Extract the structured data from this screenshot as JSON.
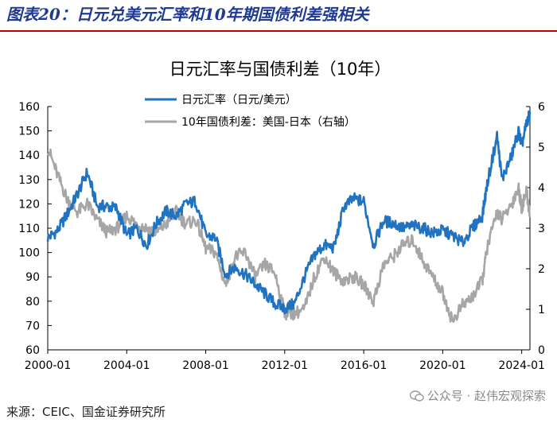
{
  "header": {
    "heading": "图表20：日元兑美元汇率和10年期国债利差强相关"
  },
  "footer": {
    "source": "来源：CEIC、国金证券研究所",
    "watermark": "公众号 · 赵伟宏观探索"
  },
  "colors": {
    "series_blue": "#1f73c1",
    "series_gray": "#a6a6a6",
    "heading": "#1f3a93",
    "rule": "#c00000"
  },
  "chart_data": {
    "type": "line",
    "title": "日元汇率与国债利差（10年）",
    "x_ticks": [
      "2000-01",
      "2004-01",
      "2008-01",
      "2012-01",
      "2016-01",
      "2020-01",
      "2024-01"
    ],
    "xlim": [
      "2000-01",
      "2024-06"
    ],
    "y_left": {
      "lim": [
        60,
        160
      ],
      "ticks": [
        "60",
        "70",
        "80",
        "90",
        "100",
        "110",
        "120",
        "130",
        "140",
        "150",
        "160"
      ]
    },
    "y_right": {
      "lim": [
        0,
        6
      ],
      "ticks": [
        "0",
        "1",
        "2",
        "3",
        "4",
        "5",
        "6"
      ]
    },
    "legend_position": "top-center",
    "series": [
      {
        "name": "日元汇率（日元/美元）",
        "axis": "left",
        "x": [
          "2000-01",
          "2000-07",
          "2001-01",
          "2001-07",
          "2002-01",
          "2002-07",
          "2003-01",
          "2003-07",
          "2004-01",
          "2004-07",
          "2005-01",
          "2005-07",
          "2006-01",
          "2006-07",
          "2007-01",
          "2007-07",
          "2008-01",
          "2008-07",
          "2009-01",
          "2009-07",
          "2010-01",
          "2010-07",
          "2011-01",
          "2011-07",
          "2012-01",
          "2012-07",
          "2013-01",
          "2013-07",
          "2014-01",
          "2014-07",
          "2015-01",
          "2015-07",
          "2016-01",
          "2016-07",
          "2017-01",
          "2017-07",
          "2018-01",
          "2018-07",
          "2019-01",
          "2019-07",
          "2020-01",
          "2020-07",
          "2021-01",
          "2021-07",
          "2022-01",
          "2022-04",
          "2022-10",
          "2023-01",
          "2023-07",
          "2023-11",
          "2024-01",
          "2024-04",
          "2024-06"
        ],
        "values": [
          106,
          109,
          116,
          124,
          133,
          119,
          119,
          118,
          107,
          110,
          103,
          112,
          117,
          115,
          120,
          121,
          107,
          106,
          91,
          94,
          91,
          87,
          83,
          79,
          77,
          79,
          90,
          99,
          103,
          102,
          119,
          122,
          121,
          103,
          113,
          112,
          110,
          111,
          110,
          108,
          109,
          107,
          104,
          110,
          115,
          128,
          148,
          130,
          140,
          150,
          144,
          153,
          157
        ]
      },
      {
        "name": "10年国债利差：美国-日本（右轴）",
        "axis": "right",
        "x": [
          "2000-01",
          "2000-07",
          "2001-01",
          "2001-07",
          "2002-01",
          "2002-07",
          "2003-01",
          "2003-07",
          "2004-01",
          "2004-07",
          "2005-01",
          "2005-07",
          "2006-01",
          "2006-07",
          "2007-01",
          "2007-07",
          "2008-01",
          "2008-07",
          "2009-01",
          "2009-07",
          "2010-01",
          "2010-07",
          "2011-01",
          "2011-07",
          "2012-01",
          "2012-07",
          "2013-01",
          "2013-07",
          "2014-01",
          "2014-07",
          "2015-01",
          "2015-07",
          "2016-01",
          "2016-07",
          "2017-01",
          "2017-07",
          "2018-01",
          "2018-07",
          "2019-01",
          "2019-07",
          "2020-01",
          "2020-07",
          "2021-01",
          "2021-07",
          "2022-01",
          "2022-04",
          "2022-10",
          "2023-01",
          "2023-07",
          "2023-11",
          "2024-01",
          "2024-04",
          "2024-06"
        ],
        "values": [
          5.0,
          4.3,
          3.7,
          3.4,
          3.6,
          3.2,
          2.9,
          3.0,
          3.3,
          3.1,
          3.0,
          2.9,
          3.1,
          3.4,
          3.1,
          3.2,
          2.5,
          2.4,
          1.6,
          2.3,
          2.4,
          1.8,
          2.1,
          1.9,
          0.9,
          0.9,
          1.0,
          1.8,
          2.3,
          1.9,
          1.7,
          1.8,
          1.6,
          1.2,
          2.1,
          2.3,
          2.6,
          2.7,
          2.2,
          1.8,
          1.4,
          0.7,
          1.1,
          1.3,
          1.7,
          2.5,
          3.4,
          3.2,
          3.6,
          4.0,
          3.5,
          3.9,
          3.3
        ]
      }
    ]
  }
}
